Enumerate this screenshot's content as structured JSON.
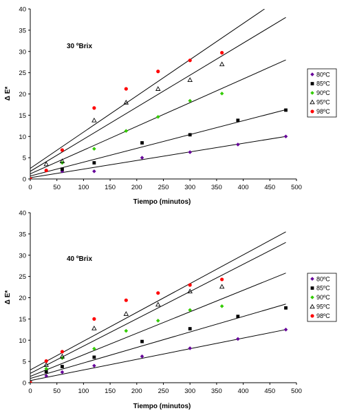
{
  "chart_data": [
    {
      "type": "scatter",
      "annotation": "30 ºBrix",
      "xlabel": "Tiempo (minutos)",
      "ylabel": "Δ E*",
      "xlim": [
        0,
        500
      ],
      "ylim": [
        0,
        40
      ],
      "xticks": [
        "0",
        "50",
        "100",
        "150",
        "200",
        "250",
        "300",
        "350",
        "400",
        "450",
        "500"
      ],
      "yticks": [
        "0",
        "5",
        "10",
        "15",
        "20",
        "25",
        "30",
        "35",
        "40"
      ],
      "grid": false,
      "legend_position": "right",
      "series": [
        {
          "name": "80ºC",
          "color": "#660099",
          "marker": "diamond",
          "points": [
            [
              0,
              0
            ],
            [
              60,
              1.8
            ],
            [
              120,
              1.8
            ],
            [
              210,
              5
            ],
            [
              300,
              6.3
            ],
            [
              390,
              8.1
            ],
            [
              480,
              10
            ]
          ],
          "trend": [
            [
              0,
              0.3
            ],
            [
              480,
              10
            ]
          ]
        },
        {
          "name": "85ºC",
          "color": "#000000",
          "marker": "square",
          "points": [
            [
              0,
              0
            ],
            [
              60,
              2.3
            ],
            [
              120,
              3.8
            ],
            [
              210,
              8.5
            ],
            [
              300,
              10.4
            ],
            [
              390,
              13.8
            ],
            [
              480,
              16.2
            ]
          ],
          "trend": [
            [
              0,
              0.7
            ],
            [
              480,
              16.3
            ]
          ]
        },
        {
          "name": "90ºC",
          "color": "#33cc00",
          "marker": "diamond",
          "points": [
            [
              0,
              0
            ],
            [
              60,
              3.8
            ],
            [
              120,
              7.1
            ],
            [
              180,
              11.3
            ],
            [
              240,
              14.6
            ],
            [
              300,
              18.4
            ],
            [
              360,
              20.1
            ]
          ],
          "trend": [
            [
              0,
              1.2
            ],
            [
              480,
              28
            ]
          ]
        },
        {
          "name": "95ºC",
          "color": "#000000",
          "marker": "triangle",
          "points": [
            [
              0,
              0
            ],
            [
              30,
              3.5
            ],
            [
              60,
              4.2
            ],
            [
              120,
              13.8
            ],
            [
              180,
              18
            ],
            [
              240,
              21.2
            ],
            [
              300,
              23.3
            ],
            [
              360,
              27
            ]
          ],
          "trend": [
            [
              0,
              1.8
            ],
            [
              480,
              38
            ]
          ]
        },
        {
          "name": "98ºC",
          "color": "#ff0000",
          "marker": "circle",
          "points": [
            [
              0,
              0
            ],
            [
              30,
              2
            ],
            [
              60,
              6.8
            ],
            [
              120,
              16.7
            ],
            [
              180,
              21.2
            ],
            [
              240,
              25.3
            ],
            [
              300,
              27.9
            ],
            [
              360,
              29.7
            ]
          ],
          "trend": [
            [
              0,
              2.5
            ],
            [
              440,
              40
            ]
          ]
        }
      ]
    },
    {
      "type": "scatter",
      "annotation": "40 ºBrix",
      "xlabel": "Tiempo (minutos)",
      "ylabel": "Δ E*",
      "xlim": [
        0,
        500
      ],
      "ylim": [
        0,
        40
      ],
      "xticks": [
        "0",
        "50",
        "100",
        "150",
        "200",
        "250",
        "300",
        "350",
        "400",
        "450",
        "500"
      ],
      "yticks": [
        "0",
        "5",
        "10",
        "15",
        "20",
        "25",
        "30",
        "35",
        "40"
      ],
      "grid": false,
      "legend_position": "right",
      "series": [
        {
          "name": "80ºC",
          "color": "#660099",
          "marker": "diamond",
          "points": [
            [
              0,
              0
            ],
            [
              30,
              1.6
            ],
            [
              60,
              2.5
            ],
            [
              120,
              4
            ],
            [
              210,
              6.2
            ],
            [
              300,
              8.1
            ],
            [
              390,
              10.3
            ],
            [
              480,
              12.5
            ]
          ],
          "trend": [
            [
              0,
              0.5
            ],
            [
              480,
              12.5
            ]
          ]
        },
        {
          "name": "85ºC",
          "color": "#000000",
          "marker": "square",
          "points": [
            [
              0,
              0
            ],
            [
              30,
              2.6
            ],
            [
              60,
              3.8
            ],
            [
              120,
              6
            ],
            [
              210,
              9.7
            ],
            [
              300,
              12.7
            ],
            [
              390,
              15.6
            ],
            [
              480,
              17.6
            ]
          ],
          "trend": [
            [
              0,
              1
            ],
            [
              480,
              18.5
            ]
          ]
        },
        {
          "name": "90ºC",
          "color": "#33cc00",
          "marker": "diamond",
          "points": [
            [
              0,
              0
            ],
            [
              30,
              3.3
            ],
            [
              60,
              5.8
            ],
            [
              120,
              8
            ],
            [
              180,
              12.2
            ],
            [
              240,
              14.6
            ],
            [
              300,
              17.1
            ],
            [
              360,
              18
            ]
          ],
          "trend": [
            [
              0,
              1.5
            ],
            [
              480,
              25.8
            ]
          ]
        },
        {
          "name": "95ºC",
          "color": "#000000",
          "marker": "triangle",
          "points": [
            [
              0,
              0
            ],
            [
              30,
              4.2
            ],
            [
              60,
              6.2
            ],
            [
              120,
              12.8
            ],
            [
              180,
              16.2
            ],
            [
              240,
              18.4
            ],
            [
              300,
              21.5
            ],
            [
              360,
              22.6
            ]
          ],
          "trend": [
            [
              0,
              2.2
            ],
            [
              480,
              33
            ]
          ]
        },
        {
          "name": "98ºC",
          "color": "#ff0000",
          "marker": "circle",
          "points": [
            [
              0,
              0
            ],
            [
              30,
              5.1
            ],
            [
              60,
              7.3
            ],
            [
              120,
              15
            ],
            [
              180,
              19.4
            ],
            [
              240,
              21.1
            ],
            [
              300,
              23
            ],
            [
              360,
              24.3
            ]
          ],
          "trend": [
            [
              0,
              3
            ],
            [
              480,
              35.5
            ]
          ]
        }
      ]
    }
  ]
}
